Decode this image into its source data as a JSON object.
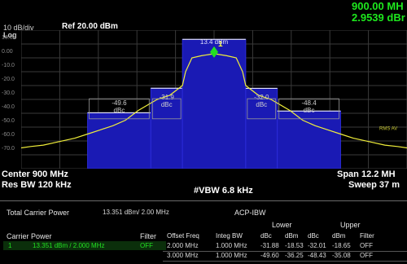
{
  "marker": {
    "freq": "900.00 MH",
    "power": "2.9539 dBr"
  },
  "header": {
    "scale": "10 dB/div",
    "ref": "Ref 20.00 dBm",
    "log": "Log"
  },
  "y_ticks": [
    "10.0",
    "0.00",
    "-10.0",
    "-20.0",
    "-30.0",
    "-40.0",
    "-50.0",
    "-60.0",
    "-70.0"
  ],
  "chart_data": {
    "type": "line",
    "title": "",
    "xlabel": "",
    "ylabel": "",
    "ylim": [
      -80,
      20
    ],
    "x_range_mhz": [
      893.9,
      906.1
    ],
    "series": [
      {
        "name": "",
        "x": [
          893.9,
          894.2,
          894.6,
          895.0,
          895.6,
          896.0,
          896.4,
          896.8,
          897.2,
          897.6,
          898.2,
          898.6,
          899.0,
          899.1,
          899.3,
          899.6,
          900.0,
          900.4,
          900.7,
          900.9,
          901.0,
          901.4,
          901.8,
          902.4,
          902.8,
          903.2,
          903.6,
          904.0,
          904.4,
          905.0,
          905.4,
          905.8,
          906.1
        ],
        "y": [
          -65,
          -64,
          -63,
          -61,
          -58,
          -55,
          -52,
          -49,
          -45,
          -38,
          -30,
          -27,
          -20,
          -10,
          0,
          1.5,
          3,
          1.5,
          0,
          -10,
          -20,
          -27,
          -30,
          -38,
          -45,
          -49,
          -52,
          -55,
          -58,
          -61,
          -63,
          -64,
          -65
        ]
      }
    ],
    "acp_bars": [
      {
        "label": "-49.6\ndBc",
        "x_start": 896.0,
        "x_end": 898.0,
        "top": -39.6
      },
      {
        "label": "-31.9\ndBc",
        "x_start": 898.0,
        "x_end": 899.0,
        "top": -21.9
      },
      {
        "label": "13.4 dBm",
        "x_start": 899.0,
        "x_end": 901.0,
        "top": 13.35
      },
      {
        "label": "-32.0\ndBc",
        "x_start": 901.0,
        "x_end": 902.0,
        "top": -22.0
      },
      {
        "label": "-48.4\ndBc",
        "x_start": 902.0,
        "x_end": 904.0,
        "top": -38.4
      }
    ],
    "marker_label": "1",
    "rms_label": "RMS AV"
  },
  "footer": {
    "center": "Center  900 MHz",
    "res_bw": "Res BW  120 kHz",
    "vbw": "#VBW  6.8 kHz",
    "span": "Span 12.2 MH",
    "sweep": "Sweep  37 m"
  },
  "table": {
    "total_carrier_power_label": "Total Carrier Power",
    "total_carrier_power_value": "13.351 dBm/ 2.00 MHz",
    "acp_title": "ACP-IBW",
    "carrier_power_label": "Carrier Power",
    "filter_label": "Filter",
    "carrier_row": {
      "index": "1",
      "value": "13.351 dBm /  2.000 MHz",
      "filter": "OFF"
    },
    "lower_label": "Lower",
    "upper_label": "Upper",
    "cols": [
      "Offset Freq",
      "Integ BW",
      "dBc",
      "dBm",
      "dBc",
      "dBm",
      "Filter"
    ],
    "rows": [
      [
        "2.000 MHz",
        "1.000 MHz",
        "-31.88",
        "-18.53",
        "-32.01",
        "-18.65",
        "OFF"
      ],
      [
        "3.000 MHz",
        "1.000 MHz",
        "-49.60",
        "-36.25",
        "-48.43",
        "-35.08",
        "OFF"
      ]
    ]
  }
}
